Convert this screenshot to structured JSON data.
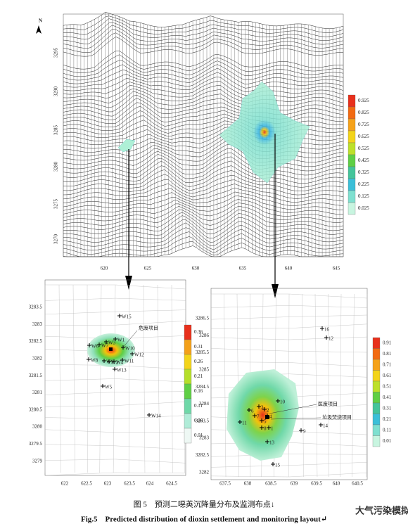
{
  "north": "N",
  "top_plot": {
    "y_ticks": [
      "3295",
      "3290",
      "3285",
      "3280",
      "3275",
      "3270"
    ],
    "x_ticks": [
      "620",
      "625",
      "630",
      "635",
      "640",
      "645"
    ],
    "legend": [
      "0.925",
      "0.825",
      "0.725",
      "0.625",
      "0.525",
      "0.425",
      "0.325",
      "0.225",
      "0.125",
      "0.025"
    ]
  },
  "left_map": {
    "y_ticks": [
      "3283.5",
      "3283",
      "3282.5",
      "3282",
      "3281.5",
      "3281",
      "3280.5",
      "3280",
      "3279.5",
      "3279"
    ],
    "x_ticks": [
      "622",
      "622.5",
      "623",
      "623.5",
      "624",
      "624.5"
    ],
    "legend": [
      "0.36",
      "0.31",
      "0.26",
      "0.21",
      "0.16",
      "0.11",
      "0.06",
      "0.01"
    ],
    "points": [
      "W15",
      "W1",
      "W3",
      "W7",
      "W6",
      "W10",
      "W12",
      "W8",
      "W9",
      "W2",
      "W4",
      "W11",
      "W13",
      "W5",
      "W14"
    ],
    "source": "危废项目"
  },
  "right_map": {
    "y_ticks": [
      "3286.5",
      "3286",
      "3285.5",
      "3285",
      "3284.5",
      "3284",
      "3283.5",
      "3283",
      "3282.5",
      "3282"
    ],
    "x_ticks": [
      "637.5",
      "638",
      "638.5",
      "639",
      "639.5",
      "640",
      "640.5"
    ],
    "legend": [
      "0.91",
      "0.81",
      "0.71",
      "0.61",
      "0.51",
      "0.41",
      "0.31",
      "0.21",
      "0.11",
      "0.01"
    ],
    "points": [
      "16",
      "12",
      "10",
      "6",
      "2",
      "7",
      "4",
      "11",
      "5",
      "8",
      "1",
      "9",
      "14",
      "13",
      "15",
      "3"
    ],
    "sources": [
      "医废项目",
      "垃圾焚烧项目"
    ]
  },
  "caption": {
    "zh": "图 5　预测二噁英沉降量分布及监测布点↓",
    "en": "Fig.5　Predicted distribution of dioxin settlement and monitoring layout↵"
  },
  "watermark": "大气污染模拟"
}
